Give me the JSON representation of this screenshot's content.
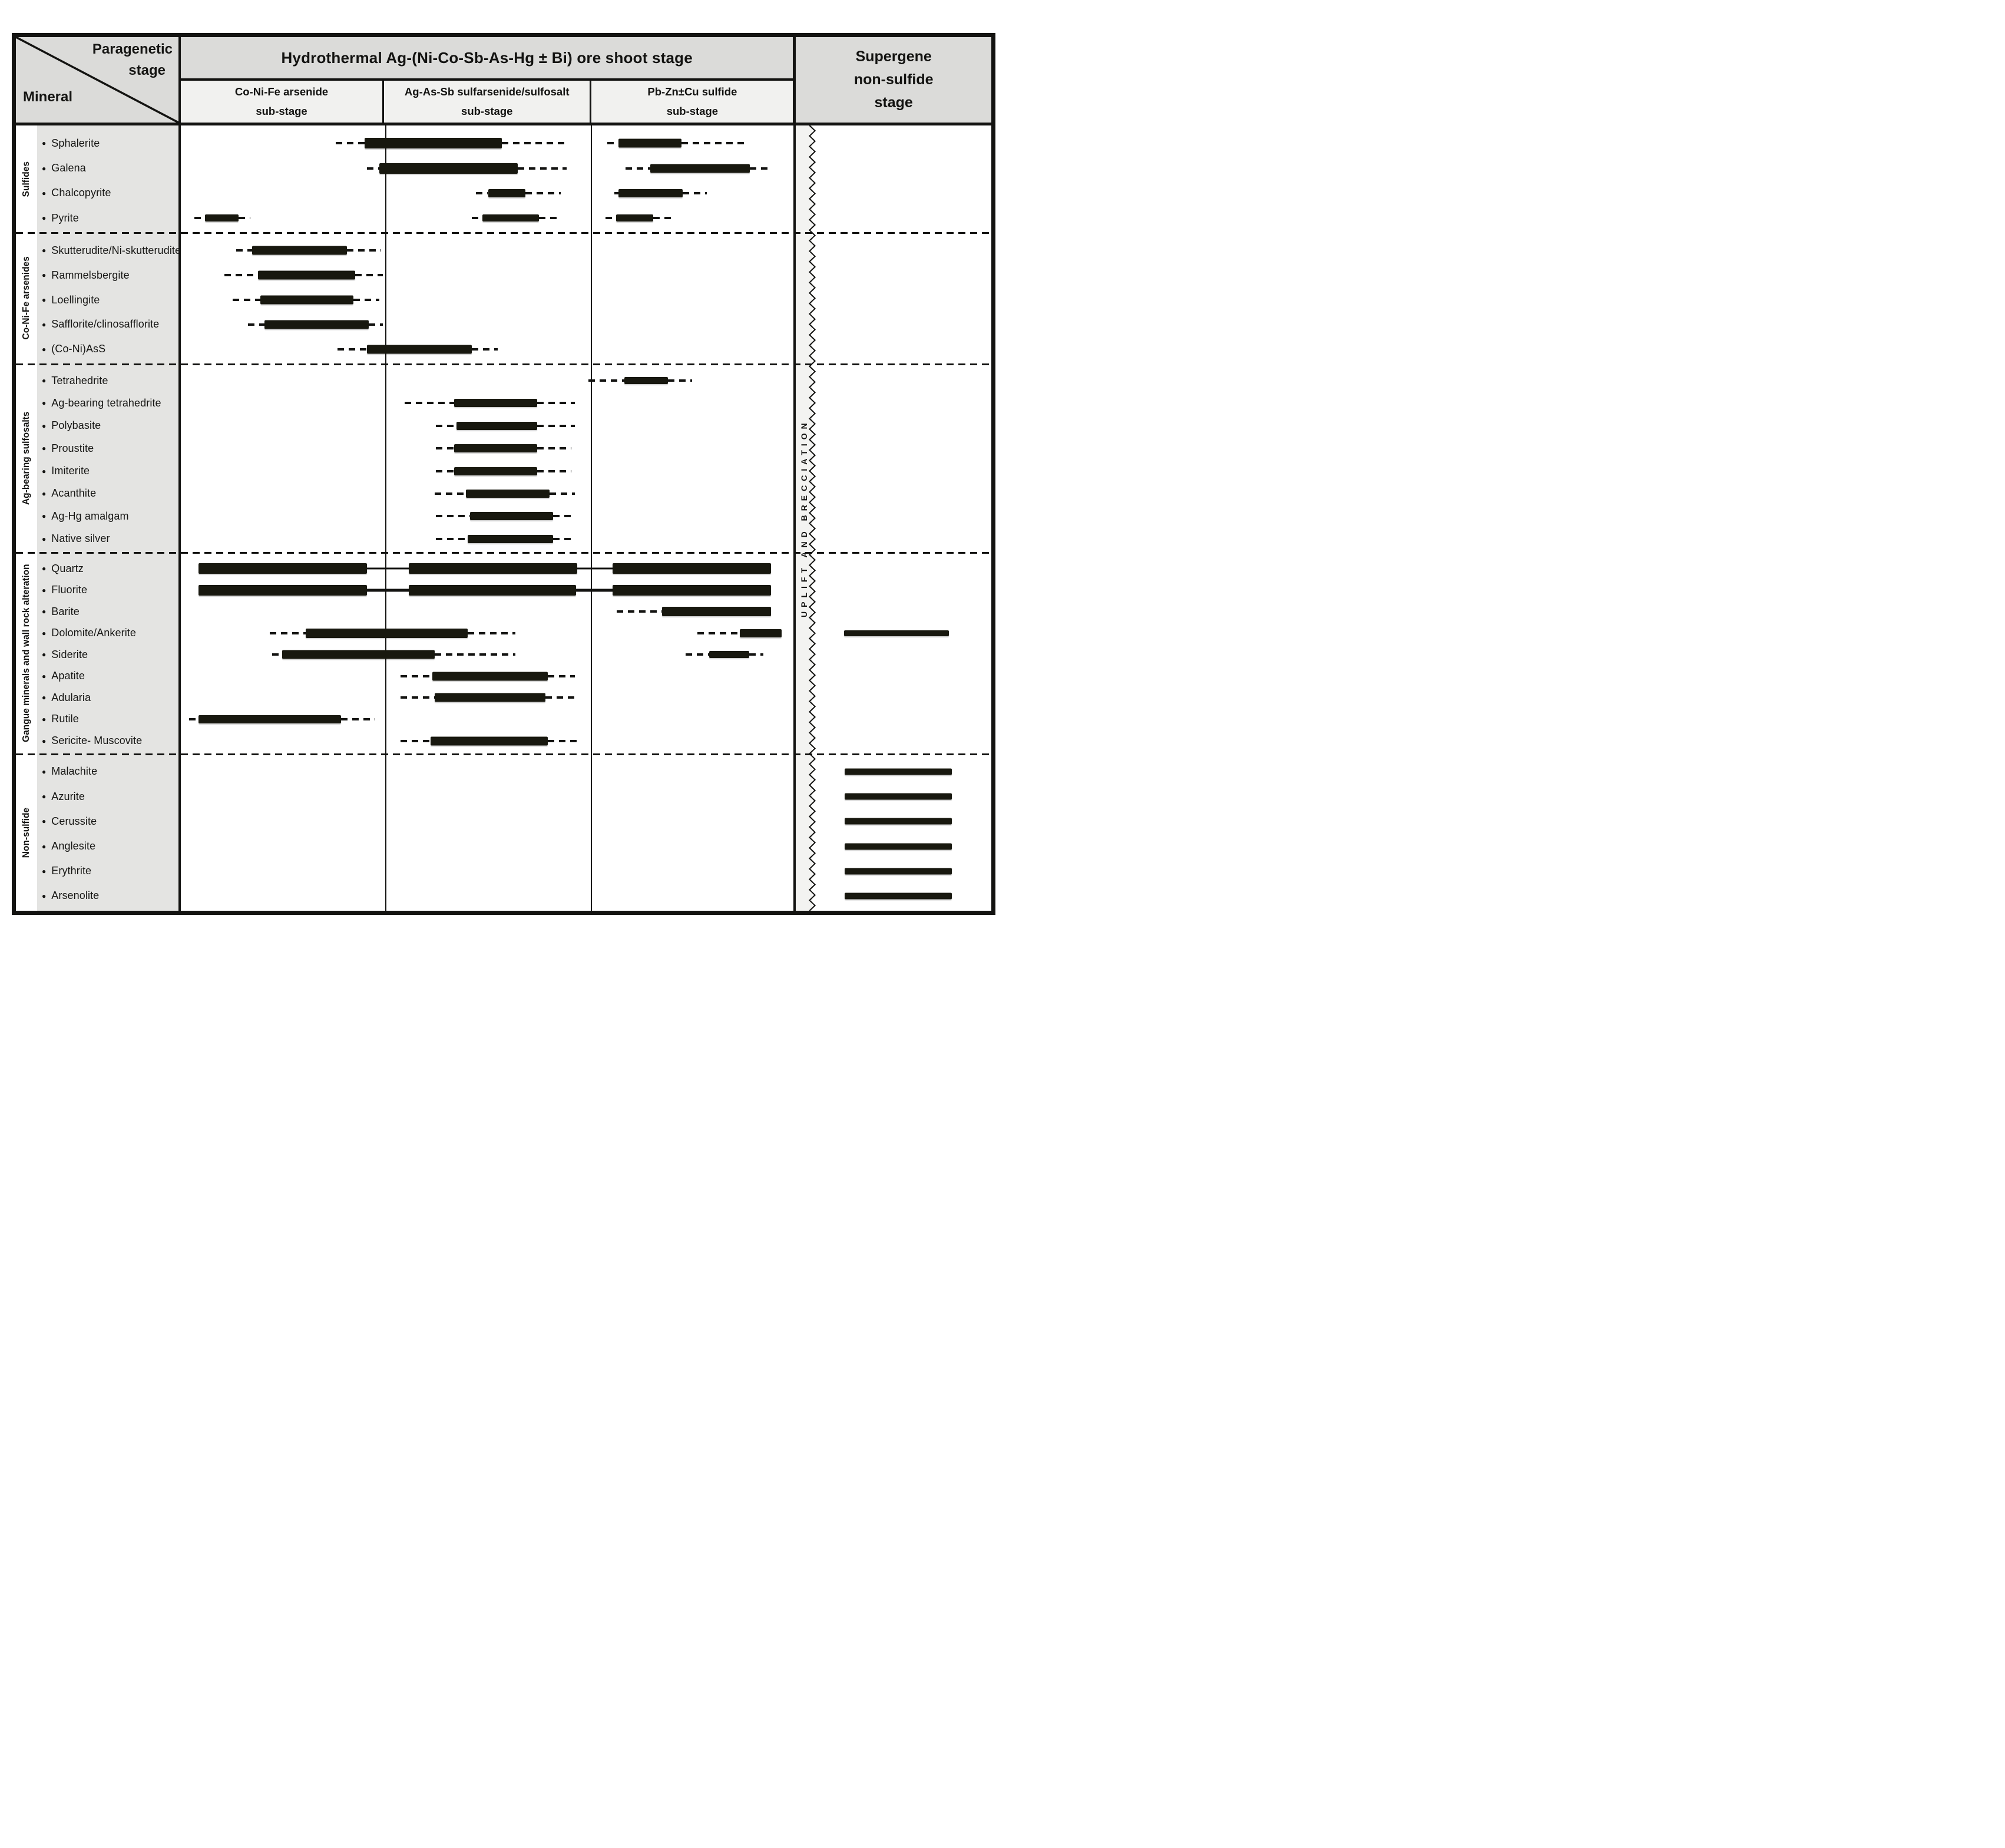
{
  "header": {
    "corner": {
      "line1": "Paragenetic",
      "line2": "stage",
      "mineral": "Mineral"
    },
    "main_stage": "Hydrothermal Ag-(Ni-Co-Sb-As-Hg ± Bi) ore shoot stage",
    "sub_stages": [
      {
        "line1": "Co-Ni-Fe arsenide",
        "line2": "sub-stage"
      },
      {
        "line1": "Ag-As-Sb sulfarsenide/sulfosalt",
        "line2": "sub-stage"
      },
      {
        "line1": "Pb-Zn±Cu sulfide",
        "line2": "sub-stage"
      }
    ],
    "supergene_lines": [
      "Supergene",
      "non-sulfide",
      "stage"
    ]
  },
  "band": {
    "label": "UPLIFT AND BRECCIATION"
  },
  "chart_layout": {
    "stage_divider_pcts": [
      25.2,
      50.6
    ],
    "band_left_pct": 75.9,
    "band_right_pct": 77.9,
    "colors": {
      "ink": "#131311",
      "bar": "#18180f",
      "header_gray": "#dbdbd9",
      "subheader_gray": "#f1f1ef",
      "panel_gray": "#e4e4e2",
      "band_gray": "#f3f3f1"
    }
  },
  "legend_note": "s = solid bar (abundant), d = dashed line (trace), l = thin connector line; positions are % across the stage area",
  "sections": [
    {
      "group": "Sulfides",
      "height_pct": 13.68,
      "minerals": [
        {
          "name": "Sphalerite",
          "segments": [
            [
              "d",
              19.1,
              22.7
            ],
            [
              "s",
              22.7,
              39.6,
              18
            ],
            [
              "d",
              39.6,
              47.6
            ],
            [
              "d",
              52.6,
              54.0
            ],
            [
              "s",
              54.0,
              61.8,
              15
            ],
            [
              "d",
              61.8,
              69.7
            ]
          ]
        },
        {
          "name": "Galena",
          "segments": [
            [
              "d",
              23.0,
              24.5
            ],
            [
              "s",
              24.5,
              41.6,
              18
            ],
            [
              "d",
              41.6,
              47.6
            ],
            [
              "d",
              54.9,
              57.9
            ],
            [
              "s",
              57.9,
              70.2,
              15
            ],
            [
              "d",
              70.2,
              73.0
            ]
          ]
        },
        {
          "name": "Chalcopyrite",
          "segments": [
            [
              "d",
              36.4,
              37.9
            ],
            [
              "s",
              37.9,
              42.5,
              14
            ],
            [
              "d",
              42.5,
              46.9
            ],
            [
              "d",
              53.5,
              54.0
            ],
            [
              "s",
              54.0,
              61.9,
              14
            ],
            [
              "d",
              61.9,
              64.9
            ]
          ]
        },
        {
          "name": "Pyrite",
          "segments": [
            [
              "d",
              1.7,
              3.0
            ],
            [
              "s",
              3.0,
              7.1,
              12
            ],
            [
              "d",
              7.1,
              8.6
            ],
            [
              "d",
              35.9,
              37.2
            ],
            [
              "s",
              37.2,
              44.2,
              12
            ],
            [
              "d",
              44.2,
              46.9
            ],
            [
              "d",
              52.4,
              53.7
            ],
            [
              "s",
              53.7,
              58.3,
              12
            ],
            [
              "d",
              58.3,
              60.8
            ]
          ]
        }
      ]
    },
    {
      "group": "Co-Ni-Fe arsenides",
      "height_pct": 16.69,
      "minerals": [
        {
          "name": "Skutterudite/Ni-skutterudite",
          "segments": [
            [
              "d",
              6.8,
              8.8
            ],
            [
              "s",
              8.8,
              20.5,
              15
            ],
            [
              "d",
              20.5,
              24.7
            ]
          ]
        },
        {
          "name": "Rammelsbergite",
          "segments": [
            [
              "d",
              5.4,
              9.5
            ],
            [
              "s",
              9.5,
              21.5,
              15
            ],
            [
              "d",
              21.5,
              24.9
            ]
          ]
        },
        {
          "name": "Loellingite",
          "segments": [
            [
              "d",
              6.4,
              9.8
            ],
            [
              "s",
              9.8,
              21.3,
              15
            ],
            [
              "d",
              21.3,
              24.5
            ]
          ]
        },
        {
          "name": "Safflorite/clinosafflorite",
          "segments": [
            [
              "d",
              8.3,
              10.3
            ],
            [
              "s",
              10.3,
              23.2,
              15
            ],
            [
              "d",
              23.2,
              24.9
            ]
          ]
        },
        {
          "name": "(Co-Ni)AsS",
          "segments": [
            [
              "d",
              19.3,
              23.0
            ],
            [
              "s",
              23.0,
              35.9,
              15
            ],
            [
              "d",
              35.9,
              39.1
            ]
          ]
        }
      ]
    },
    {
      "group": "Ag-bearing sulfosalts",
      "height_pct": 24.01,
      "minerals": [
        {
          "name": "Tetrahedrite",
          "segments": [
            [
              "d",
              50.3,
              54.7
            ],
            [
              "s",
              54.7,
              60.1,
              12
            ],
            [
              "d",
              60.1,
              63.1
            ]
          ]
        },
        {
          "name": "Ag-bearing tetrahedrite",
          "segments": [
            [
              "d",
              27.6,
              33.7
            ],
            [
              "s",
              33.7,
              44.0,
              14
            ],
            [
              "d",
              44.0,
              48.6
            ]
          ]
        },
        {
          "name": "Polybasite",
          "segments": [
            [
              "d",
              31.5,
              34.0
            ],
            [
              "s",
              34.0,
              44.0,
              14
            ],
            [
              "d",
              44.0,
              48.6
            ]
          ]
        },
        {
          "name": "Proustite",
          "segments": [
            [
              "d",
              31.5,
              33.7
            ],
            [
              "s",
              33.7,
              44.0,
              14
            ],
            [
              "d",
              44.0,
              48.2
            ]
          ]
        },
        {
          "name": "Imiterite",
          "segments": [
            [
              "d",
              31.5,
              33.7
            ],
            [
              "s",
              33.7,
              44.0,
              14
            ],
            [
              "d",
              44.0,
              48.2
            ]
          ]
        },
        {
          "name": "Acanthite",
          "segments": [
            [
              "d",
              31.3,
              35.2
            ],
            [
              "s",
              35.2,
              45.5,
              14
            ],
            [
              "d",
              45.5,
              48.6
            ]
          ]
        },
        {
          "name": "Ag-Hg amalgam",
          "segments": [
            [
              "d",
              31.5,
              35.7
            ],
            [
              "s",
              35.7,
              45.9,
              14
            ],
            [
              "d",
              45.9,
              48.2
            ]
          ]
        },
        {
          "name": "Native silver",
          "segments": [
            [
              "d",
              31.5,
              35.4
            ],
            [
              "s",
              35.4,
              45.9,
              14
            ],
            [
              "d",
              45.9,
              48.2
            ]
          ]
        }
      ]
    },
    {
      "group": "Gangue minerals and wall rock alteration",
      "height_pct": 25.65,
      "minerals": [
        {
          "name": "Quartz",
          "segments": [
            [
              "s",
              2.2,
              23.0,
              18
            ],
            [
              "l",
              23.0,
              28.1,
              3
            ],
            [
              "s",
              28.1,
              48.9,
              18
            ],
            [
              "l",
              48.9,
              53.3,
              3
            ],
            [
              "s",
              53.3,
              72.8,
              18
            ]
          ]
        },
        {
          "name": "Fluorite",
          "segments": [
            [
              "s",
              2.2,
              23.0,
              18
            ],
            [
              "l",
              23.0,
              28.1,
              5
            ],
            [
              "s",
              28.1,
              48.8,
              18
            ],
            [
              "l",
              48.8,
              53.3,
              5
            ],
            [
              "s",
              53.3,
              72.8,
              18
            ]
          ]
        },
        {
          "name": "Barite",
          "segments": [
            [
              "d",
              53.8,
              59.4
            ],
            [
              "s",
              59.4,
              72.8,
              16
            ]
          ]
        },
        {
          "name": "Dolomite/Ankerite",
          "segments": [
            [
              "d",
              11.0,
              15.4
            ],
            [
              "s",
              15.4,
              35.4,
              16
            ],
            [
              "d",
              35.4,
              41.3
            ],
            [
              "d",
              63.7,
              69.0
            ],
            [
              "s",
              69.0,
              74.1,
              14
            ],
            [
              "s",
              81.8,
              94.8,
              10
            ]
          ]
        },
        {
          "name": "Siderite",
          "segments": [
            [
              "d",
              11.3,
              12.5
            ],
            [
              "s",
              12.5,
              31.3,
              15
            ],
            [
              "d",
              31.3,
              41.3
            ],
            [
              "d",
              62.3,
              65.2
            ],
            [
              "s",
              65.2,
              70.1,
              12
            ],
            [
              "d",
              70.1,
              71.9
            ]
          ]
        },
        {
          "name": "Apatite",
          "segments": [
            [
              "d",
              27.1,
              31.0
            ],
            [
              "s",
              31.0,
              45.3,
              15
            ],
            [
              "d",
              45.3,
              48.6
            ]
          ]
        },
        {
          "name": "Adularia",
          "segments": [
            [
              "d",
              27.1,
              31.3
            ],
            [
              "s",
              31.3,
              45.0,
              15
            ],
            [
              "d",
              45.0,
              48.9
            ]
          ]
        },
        {
          "name": "Rutile",
          "segments": [
            [
              "d",
              1.0,
              2.2
            ],
            [
              "s",
              2.2,
              19.8,
              14
            ],
            [
              "d",
              19.8,
              24.0
            ]
          ]
        },
        {
          "name": "Sericite- Muscovite",
          "segments": [
            [
              "d",
              27.1,
              30.8
            ],
            [
              "s",
              30.8,
              45.3,
              15
            ],
            [
              "d",
              45.3,
              49.4
            ]
          ]
        }
      ]
    },
    {
      "group": "Non-sulfide",
      "height_pct": 19.97,
      "minerals": [
        {
          "name": "Malachite",
          "segments": [
            [
              "s",
              81.9,
              95.1,
              11
            ]
          ]
        },
        {
          "name": "Azurite",
          "segments": [
            [
              "s",
              81.9,
              95.1,
              11
            ]
          ]
        },
        {
          "name": "Cerussite",
          "segments": [
            [
              "s",
              81.9,
              95.1,
              11
            ]
          ]
        },
        {
          "name": "Anglesite",
          "segments": [
            [
              "s",
              81.9,
              95.1,
              11
            ]
          ]
        },
        {
          "name": "Erythrite",
          "segments": [
            [
              "s",
              81.9,
              95.1,
              11
            ]
          ]
        },
        {
          "name": "Arsenolite",
          "segments": [
            [
              "s",
              81.9,
              95.1,
              11
            ]
          ]
        }
      ]
    }
  ]
}
